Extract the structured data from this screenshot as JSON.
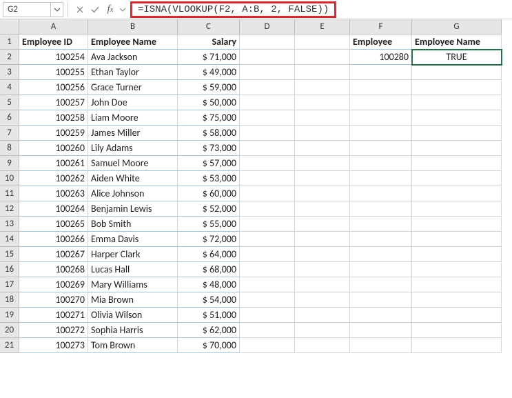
{
  "highlight_color": "#e3262b",
  "name_box": "G2",
  "formula": "=ISNA(VLOOKUP(F2, A:B, 2, FALSE))",
  "columns": [
    "A",
    "B",
    "C",
    "D",
    "E",
    "F",
    "G"
  ],
  "rows": [
    "1",
    "2",
    "3",
    "4",
    "5",
    "6",
    "7",
    "8",
    "9",
    "10",
    "11",
    "12",
    "13",
    "14",
    "15",
    "16",
    "17",
    "18",
    "19",
    "20",
    "21"
  ],
  "headers": {
    "A": "Employee ID",
    "B": "Employee Name",
    "C": "Salary",
    "F": "Employee",
    "G": "Employee Name"
  },
  "lookup": {
    "F2": "100280",
    "G2": "TRUE"
  },
  "data": [
    {
      "id": "100254",
      "name": "Ava Jackson",
      "salary": "$ 71,000"
    },
    {
      "id": "100255",
      "name": "Ethan Taylor",
      "salary": "$ 49,000"
    },
    {
      "id": "100256",
      "name": "Grace Turner",
      "salary": "$ 59,000"
    },
    {
      "id": "100257",
      "name": "John Doe",
      "salary": "$ 50,000"
    },
    {
      "id": "100258",
      "name": "Liam Moore",
      "salary": "$ 75,000"
    },
    {
      "id": "100259",
      "name": "James Miller",
      "salary": "$ 58,000"
    },
    {
      "id": "100260",
      "name": "Lily Adams",
      "salary": "$ 73,000"
    },
    {
      "id": "100261",
      "name": "Samuel Moore",
      "salary": "$ 57,000"
    },
    {
      "id": "100262",
      "name": "Aiden White",
      "salary": "$ 53,000"
    },
    {
      "id": "100263",
      "name": "Alice Johnson",
      "salary": "$ 60,000"
    },
    {
      "id": "100264",
      "name": "Benjamin Lewis",
      "salary": "$ 52,000"
    },
    {
      "id": "100265",
      "name": "Bob Smith",
      "salary": "$ 55,000"
    },
    {
      "id": "100266",
      "name": "Emma Davis",
      "salary": "$ 72,000"
    },
    {
      "id": "100267",
      "name": "Harper Clark",
      "salary": "$ 64,000"
    },
    {
      "id": "100268",
      "name": "Lucas Hall",
      "salary": "$ 68,000"
    },
    {
      "id": "100269",
      "name": "Mary Williams",
      "salary": "$ 48,000"
    },
    {
      "id": "100270",
      "name": "Mia Brown",
      "salary": "$ 54,000"
    },
    {
      "id": "100271",
      "name": "Olivia Wilson",
      "salary": "$ 51,000"
    },
    {
      "id": "100272",
      "name": "Sophia Harris",
      "salary": "$ 62,000"
    },
    {
      "id": "100273",
      "name": "Tom Brown",
      "salary": "$ 70,000"
    }
  ],
  "active_cell": "G2"
}
